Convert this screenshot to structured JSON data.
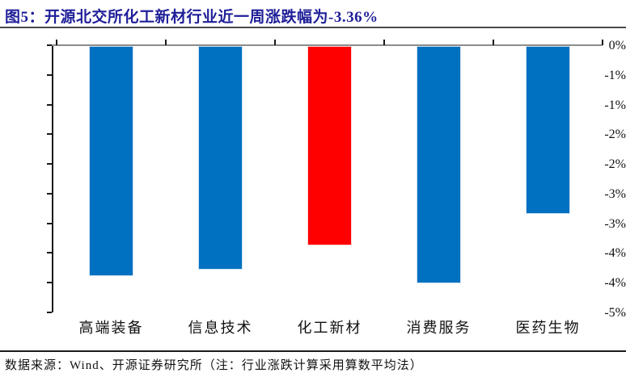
{
  "title": {
    "label": "图5：",
    "text": "图5：开源北交所化工新材行业近一周涨跌幅为-3.36%",
    "highlight_value": "-3.36%"
  },
  "source_note": "数据来源：Wind、开源证券研究所（注：行业涨跌计算采用算数平均法）",
  "colors": {
    "title_navy": "#1f1f99",
    "bar_blue": "#0070c0",
    "bar_red": "#ff0000",
    "bar_blue_edge": "#cfe2f3",
    "bar_red_edge": "#ffd2d2",
    "axis_black": "#1a1a1a",
    "zero_line_gray": "#8c8c8c"
  },
  "chart_data": {
    "type": "bar",
    "title": "开源北交所化工新材行业近一周涨跌幅为-3.36%",
    "categories": [
      "高端装备",
      "信息技术",
      "化工新材",
      "消费服务",
      "医药生物"
    ],
    "values": [
      -3.87,
      -3.76,
      -3.36,
      -4.0,
      -2.83
    ],
    "unit": "%",
    "bar_colors": [
      "#0070c0",
      "#0070c0",
      "#ff0000",
      "#0070c0",
      "#0070c0"
    ],
    "highlight_category": "化工新材",
    "highlight_value": -3.36,
    "xlabel": "",
    "ylabel": "",
    "ylim": [
      -4.5,
      0
    ],
    "y_tick_step": 0.5,
    "y_tick_labels": [
      "0%",
      "-1%",
      "-1%",
      "-2%",
      "-2%",
      "-3%",
      "-3%",
      "-4%",
      "-4%",
      "-5%"
    ],
    "y_tick_values": [
      0,
      -0.5,
      -1.0,
      -1.5,
      -2.0,
      -2.5,
      -3.0,
      -3.5,
      -4.0,
      -4.5
    ],
    "grid": false,
    "legend": null,
    "orientation": "vertical",
    "zero_line_position": "top"
  }
}
